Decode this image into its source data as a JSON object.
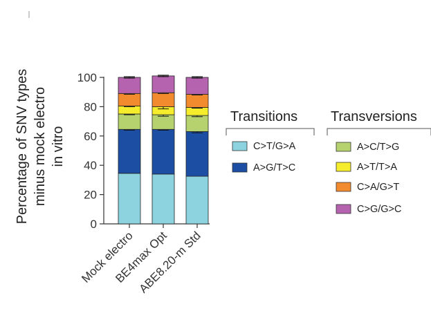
{
  "chart_data": {
    "type": "bar",
    "stacked": true,
    "categories": [
      "Mock electro",
      "BE4max Opt",
      "ABE8.20-m Std"
    ],
    "ylabel_lines": [
      "Percentage of SNV types",
      "minus mock electro",
      "in vitro"
    ],
    "ylim": [
      0,
      100
    ],
    "yticks": [
      0,
      20,
      40,
      60,
      80,
      100
    ],
    "legend_groups": [
      {
        "title": "Transitions",
        "series_indices": [
          0,
          1
        ]
      },
      {
        "title": "Transversions",
        "series_indices": [
          2,
          3,
          4,
          5
        ]
      }
    ],
    "series": [
      {
        "name": "C>T/G>A",
        "color": "#8dd3df",
        "values": [
          34.5,
          34,
          32.5
        ],
        "errors": [
          0,
          0,
          0
        ]
      },
      {
        "name": "A>G/T>C",
        "color": "#1c4fa3",
        "values": [
          30,
          30.5,
          30.5
        ],
        "errors": [
          0.5,
          0.5,
          0.8
        ]
      },
      {
        "name": "A>C/T>G",
        "color": "#b5d26f",
        "values": [
          10.5,
          10,
          11
        ],
        "errors": [
          0.5,
          1,
          0.8
        ]
      },
      {
        "name": "A>T/T>A",
        "color": "#f5ec2c",
        "values": [
          5.5,
          5.5,
          5.5
        ],
        "errors": [
          0.5,
          1.5,
          0.5
        ]
      },
      {
        "name": "C>A/G>T",
        "color": "#f28a2e",
        "values": [
          8.5,
          9.5,
          9
        ],
        "errors": [
          0.5,
          0.5,
          0.5
        ]
      },
      {
        "name": "C>G/G>C",
        "color": "#b563ae",
        "values": [
          11,
          11.5,
          11.5
        ],
        "errors": [
          0.5,
          0.5,
          0.5
        ]
      }
    ]
  }
}
